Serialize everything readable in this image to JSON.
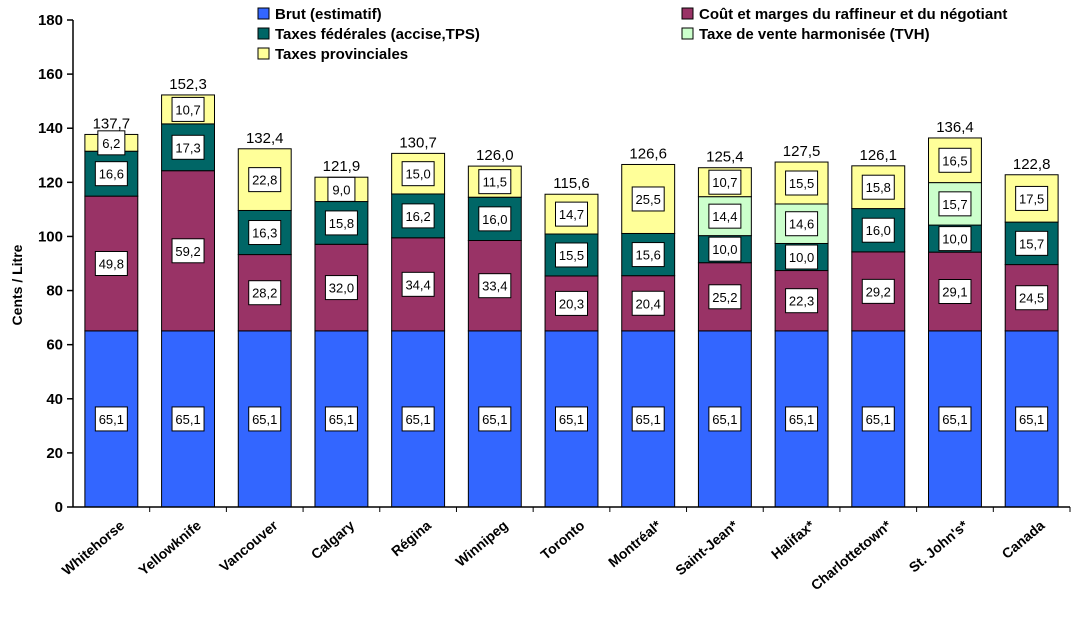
{
  "chart_data": {
    "type": "bar",
    "stacked": true,
    "ylabel": "Cents / Litre",
    "ylim": [
      0,
      180
    ],
    "yticks": [
      0,
      20,
      40,
      60,
      80,
      100,
      120,
      140,
      160,
      180
    ],
    "grid": false,
    "legend_position": "top",
    "categories": [
      "Whitehorse",
      "Yellowknife",
      "Vancouver",
      "Calgary",
      "Régina",
      "Winnipeg",
      "Toronto",
      "Montréal*",
      "Saint-Jean*",
      "Halifax*",
      "Charlottetown*",
      "St. John's*",
      "Canada"
    ],
    "series": [
      {
        "name": "Brut (estimatif)",
        "color": "#3366ff",
        "values": [
          65.1,
          65.1,
          65.1,
          65.1,
          65.1,
          65.1,
          65.1,
          65.1,
          65.1,
          65.1,
          65.1,
          65.1,
          65.1
        ],
        "labels": [
          "65,1",
          "65,1",
          "65,1",
          "65,1",
          "65,1",
          "65,1",
          "65,1",
          "65,1",
          "65,1",
          "65,1",
          "65,1",
          "65,1",
          "65,1"
        ]
      },
      {
        "name": "Coût et marges du raffineur et du négotiant",
        "color": "#993366",
        "values": [
          49.8,
          59.2,
          28.2,
          32.0,
          34.4,
          33.4,
          20.3,
          20.4,
          25.2,
          22.3,
          29.2,
          29.1,
          24.5
        ],
        "labels": [
          "49,8",
          "59,2",
          "28,2",
          "32,0",
          "34,4",
          "33,4",
          "20,3",
          "20,4",
          "25,2",
          "22,3",
          "29,2",
          "29,1",
          "24,5"
        ]
      },
      {
        "name": "Taxes fédérales (accise,TPS)",
        "color": "#006666",
        "values": [
          16.6,
          17.3,
          16.3,
          15.8,
          16.2,
          16.0,
          15.5,
          15.6,
          10.0,
          10.0,
          16.0,
          10.0,
          15.7
        ],
        "labels": [
          "16,6",
          "17,3",
          "16,3",
          "15,8",
          "16,2",
          "16,0",
          "15,5",
          "15,6",
          "10,0",
          "10,0",
          "16,0",
          "10,0",
          "15,7"
        ]
      },
      {
        "name": "Taxe de vente harmonisée (TVH)",
        "color": "#ccffcc",
        "values": [
          0,
          0,
          0,
          0,
          0,
          0,
          0,
          0,
          14.4,
          14.6,
          0,
          15.7,
          0
        ],
        "labels": [
          "",
          "",
          "",
          "",
          "",
          "",
          "",
          "",
          "14,4",
          "14,6",
          "",
          "15,7",
          ""
        ]
      },
      {
        "name": "Taxes provinciales",
        "color": "#ffff99",
        "values": [
          6.2,
          10.7,
          22.8,
          9.0,
          15.0,
          11.5,
          14.7,
          25.5,
          10.7,
          15.5,
          15.8,
          16.5,
          17.5
        ],
        "labels": [
          "6,2",
          "10,7",
          "22,8",
          "9,0",
          "15,0",
          "11,5",
          "14,7",
          "25,5",
          "10,7",
          "15,5",
          "15,8",
          "16,5",
          "17,5"
        ]
      }
    ],
    "totals": [
      137.7,
      152.3,
      132.4,
      121.9,
      130.7,
      126.0,
      115.6,
      126.6,
      125.4,
      127.5,
      126.1,
      136.4,
      122.8
    ],
    "total_labels": [
      "137,7",
      "152,3",
      "132,4",
      "121,9",
      "130,7",
      "126,0",
      "115,6",
      "126,6",
      "125,4",
      "127,5",
      "126,1",
      "136,4",
      "122,8"
    ]
  }
}
